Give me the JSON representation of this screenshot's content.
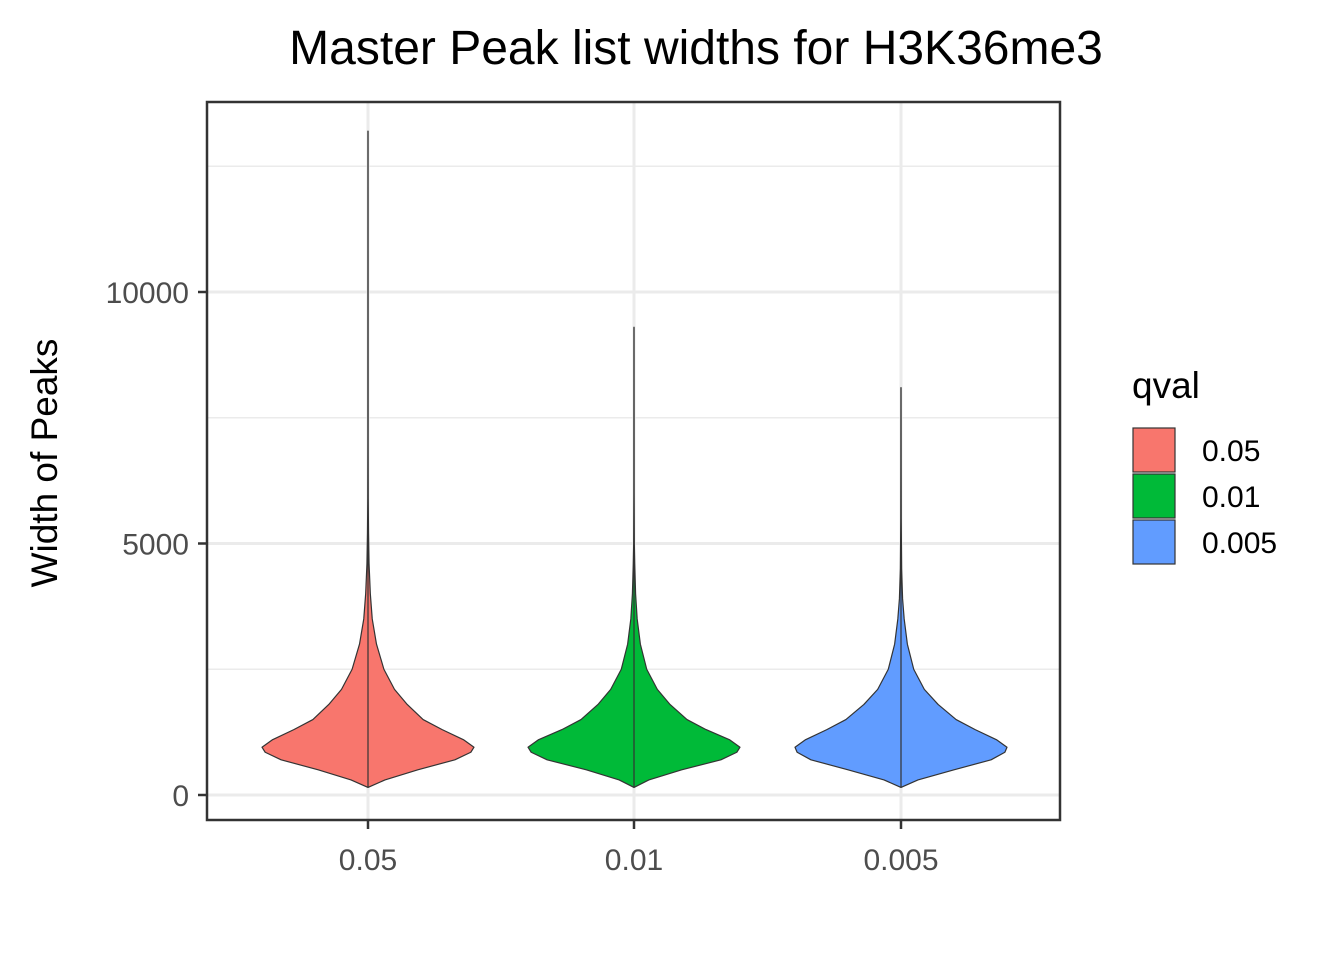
{
  "chart_data": {
    "type": "violin",
    "title": "Master Peak list widths for H3K36me3",
    "xlabel": "",
    "ylabel": "Width of Peaks",
    "categories": [
      "0.05",
      "0.01",
      "0.005"
    ],
    "ylim": [
      -400,
      13500
    ],
    "yticks": [
      0,
      5000,
      10000
    ],
    "y_minor_ticks": [
      2500,
      7500,
      12500
    ],
    "legend": {
      "title": "qval",
      "position": "right",
      "entries": [
        {
          "label": "0.05",
          "color": "#F8766D"
        },
        {
          "label": "0.01",
          "color": "#00BA38"
        },
        {
          "label": "0.005",
          "color": "#619CFF"
        }
      ]
    },
    "series": [
      {
        "category": "0.05",
        "color": "#F8766D",
        "min": 150,
        "max": 13200,
        "density_profile": [
          [
            150,
            0.0
          ],
          [
            300,
            0.16
          ],
          [
            500,
            0.47
          ],
          [
            700,
            0.82
          ],
          [
            850,
            0.97
          ],
          [
            950,
            1.0
          ],
          [
            1100,
            0.9
          ],
          [
            1300,
            0.7
          ],
          [
            1500,
            0.52
          ],
          [
            1800,
            0.37
          ],
          [
            2100,
            0.25
          ],
          [
            2500,
            0.15
          ],
          [
            3000,
            0.08
          ],
          [
            3500,
            0.04
          ],
          [
            4000,
            0.022
          ],
          [
            4600,
            0.01
          ],
          [
            5200,
            0.005
          ],
          [
            5900,
            0.002
          ],
          [
            7000,
            0.0008
          ],
          [
            13200,
            0.0
          ]
        ]
      },
      {
        "category": "0.01",
        "color": "#00BA38",
        "min": 150,
        "max": 9300,
        "density_profile": [
          [
            150,
            0.0
          ],
          [
            300,
            0.14
          ],
          [
            500,
            0.45
          ],
          [
            700,
            0.82
          ],
          [
            850,
            0.97
          ],
          [
            950,
            1.0
          ],
          [
            1100,
            0.9
          ],
          [
            1300,
            0.68
          ],
          [
            1500,
            0.5
          ],
          [
            1800,
            0.34
          ],
          [
            2100,
            0.22
          ],
          [
            2500,
            0.12
          ],
          [
            3000,
            0.06
          ],
          [
            3500,
            0.03
          ],
          [
            4000,
            0.015
          ],
          [
            4600,
            0.007
          ],
          [
            5000,
            0.003
          ],
          [
            6000,
            0.001
          ],
          [
            9300,
            0.0
          ]
        ]
      },
      {
        "category": "0.005",
        "color": "#619CFF",
        "min": 150,
        "max": 8100,
        "density_profile": [
          [
            150,
            0.0
          ],
          [
            300,
            0.16
          ],
          [
            500,
            0.5
          ],
          [
            700,
            0.85
          ],
          [
            850,
            0.98
          ],
          [
            950,
            1.0
          ],
          [
            1100,
            0.9
          ],
          [
            1300,
            0.7
          ],
          [
            1500,
            0.52
          ],
          [
            1800,
            0.35
          ],
          [
            2100,
            0.22
          ],
          [
            2500,
            0.12
          ],
          [
            3000,
            0.06
          ],
          [
            3500,
            0.03
          ],
          [
            3900,
            0.015
          ],
          [
            4500,
            0.006
          ],
          [
            5500,
            0.002
          ],
          [
            6500,
            0.001
          ],
          [
            8100,
            0.0
          ]
        ]
      }
    ]
  }
}
